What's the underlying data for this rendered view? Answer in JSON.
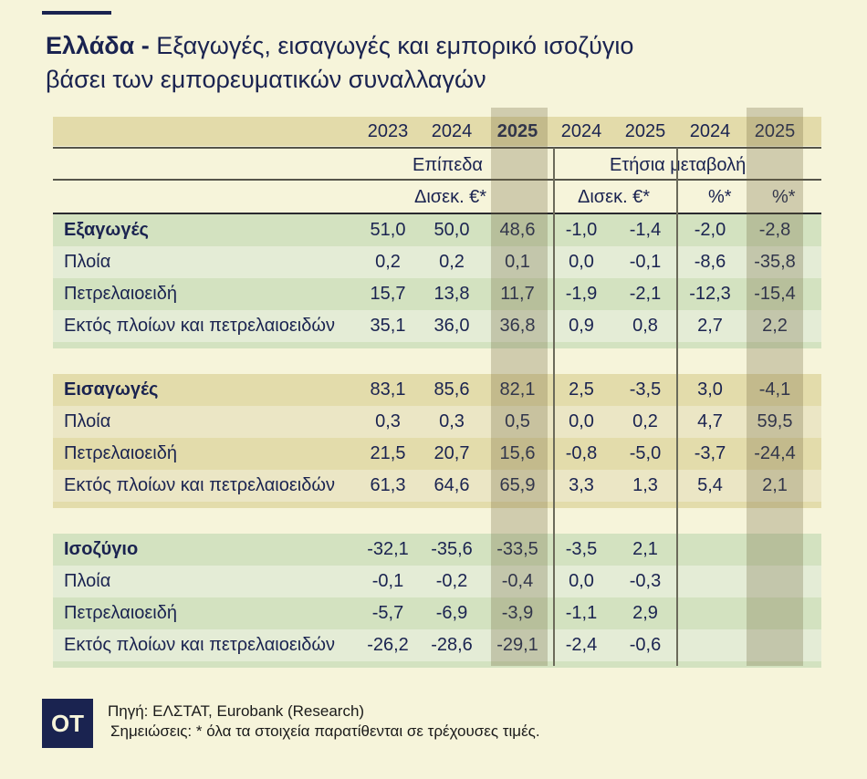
{
  "title": {
    "bold": "Ελλάδα -",
    "rest": " Εξαγωγές, εισαγωγές και εμπορικό ισοζύγιο",
    "line2": "βάσει των εμπορευματικών συναλλαγών"
  },
  "header": {
    "years": [
      "2023",
      "2024",
      "2025",
      "2024",
      "2025",
      "2024",
      "2025"
    ],
    "group_levels": "Επίπεδα",
    "group_change": "Ετήσια μεταβολή",
    "unit_levels": "Δισεκ. €*",
    "unit_change_abs": "Δισεκ. €*",
    "unit_pct_2024": "%*",
    "unit_pct_2025": "%*"
  },
  "sections": [
    {
      "rows": [
        {
          "label": "Εξαγωγές",
          "values": [
            "51,0",
            "50,0",
            "48,6",
            "-1,0",
            "-1,4",
            "-2,0",
            "-2,8"
          ]
        },
        {
          "label": "Πλοία",
          "values": [
            "0,2",
            "0,2",
            "0,1",
            "0,0",
            "-0,1",
            "-8,6",
            "-35,8"
          ]
        },
        {
          "label": "Πετρελαιοειδή",
          "values": [
            "15,7",
            "13,8",
            "11,7",
            "-1,9",
            "-2,1",
            "-12,3",
            "-15,4"
          ]
        },
        {
          "label": "Εκτός πλοίων και πετρελαιοειδών",
          "values": [
            "35,1",
            "36,0",
            "36,8",
            "0,9",
            "0,8",
            "2,7",
            "2,2"
          ]
        }
      ]
    },
    {
      "rows": [
        {
          "label": "Εισαγωγές",
          "values": [
            "83,1",
            "85,6",
            "82,1",
            "2,5",
            "-3,5",
            "3,0",
            "-4,1"
          ]
        },
        {
          "label": "Πλοία",
          "values": [
            "0,3",
            "0,3",
            "0,5",
            "0,0",
            "0,2",
            "4,7",
            "59,5"
          ]
        },
        {
          "label": "Πετρελαιοειδή",
          "values": [
            "21,5",
            "20,7",
            "15,6",
            "-0,8",
            "-5,0",
            "-3,7",
            "-24,4"
          ]
        },
        {
          "label": "Εκτός πλοίων και πετρελαιοειδών",
          "values": [
            "61,3",
            "64,6",
            "65,9",
            "3,3",
            "1,3",
            "5,4",
            "2,1"
          ]
        }
      ]
    },
    {
      "rows": [
        {
          "label": "Ισοζύγιο",
          "values": [
            "-32,1",
            "-35,6",
            "-33,5",
            "-3,5",
            "2,1",
            "",
            ""
          ]
        },
        {
          "label": "Πλοία",
          "values": [
            "-0,1",
            "-0,2",
            "-0,4",
            "0,0",
            "-0,3",
            "",
            ""
          ]
        },
        {
          "label": "Πετρελαιοειδή",
          "values": [
            "-5,7",
            "-6,9",
            "-3,9",
            "-1,1",
            "2,9",
            "",
            ""
          ]
        },
        {
          "label": "Εκτός πλοίων και πετρελαιοειδών",
          "values": [
            "-26,2",
            "-28,6",
            "-29,1",
            "-2,4",
            "-0,6",
            "",
            ""
          ]
        }
      ]
    }
  ],
  "colors": {
    "navy": "#1a2350",
    "background": "#f6f4da",
    "exports_balance_rows": "#d3e2c0",
    "imports_rows": "#e3dcab"
  },
  "logo": "OT",
  "footer": {
    "source": "Πηγή: ΕΛΣΤΑΤ, Eurobank (Research)",
    "notes": "Σημειώσεις: * όλα τα στοιχεία παρατίθενται σε τρέχουσες τιμές."
  }
}
